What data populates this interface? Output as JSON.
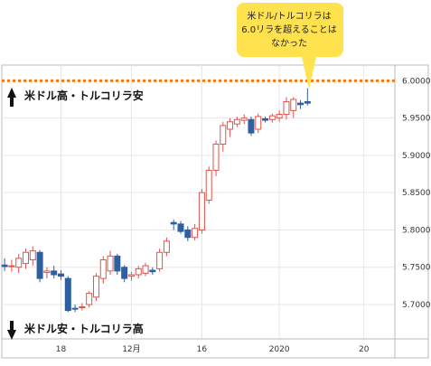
{
  "chart_data": {
    "type": "candlestick",
    "up_color": "#e0524a",
    "down_color": "#2e5f9e",
    "open": [
      5.753,
      5.751,
      5.75,
      5.755,
      5.76,
      5.77,
      5.743,
      5.745,
      5.741,
      5.735,
      5.695,
      5.696,
      5.7,
      5.71,
      5.735,
      5.745,
      5.765,
      5.75,
      5.738,
      5.74,
      5.742,
      5.746,
      5.748,
      5.77,
      5.81,
      5.808,
      5.8,
      5.79,
      5.8,
      5.84,
      5.88,
      5.915,
      5.935,
      5.942,
      5.947,
      5.948,
      5.935,
      5.949,
      5.948,
      5.95,
      5.955,
      5.96,
      5.97,
      5.972
    ],
    "high": [
      5.762,
      5.76,
      5.768,
      5.775,
      5.778,
      5.773,
      5.75,
      5.752,
      5.746,
      5.738,
      5.7,
      5.702,
      5.718,
      5.742,
      5.765,
      5.772,
      5.768,
      5.753,
      5.744,
      5.752,
      5.756,
      5.75,
      5.775,
      5.79,
      5.814,
      5.812,
      5.805,
      5.808,
      5.855,
      5.885,
      5.92,
      5.945,
      5.95,
      5.952,
      5.955,
      5.952,
      5.956,
      5.952,
      5.956,
      5.96,
      5.978,
      5.978,
      5.974,
      5.99
    ],
    "low": [
      5.745,
      5.744,
      5.742,
      5.748,
      5.752,
      5.73,
      5.735,
      5.735,
      5.733,
      5.69,
      5.69,
      5.692,
      5.696,
      5.705,
      5.728,
      5.74,
      5.74,
      5.73,
      5.732,
      5.735,
      5.738,
      5.74,
      5.744,
      5.765,
      5.8,
      5.795,
      5.785,
      5.786,
      5.795,
      5.835,
      5.872,
      5.905,
      5.925,
      5.938,
      5.942,
      5.926,
      5.93,
      5.944,
      5.944,
      5.945,
      5.948,
      5.95,
      5.962,
      5.967
    ],
    "close": [
      5.751,
      5.752,
      5.762,
      5.77,
      5.772,
      5.735,
      5.745,
      5.74,
      5.738,
      5.692,
      5.694,
      5.697,
      5.715,
      5.738,
      5.76,
      5.765,
      5.745,
      5.735,
      5.74,
      5.748,
      5.752,
      5.744,
      5.77,
      5.785,
      5.808,
      5.798,
      5.79,
      5.802,
      5.85,
      5.88,
      5.915,
      5.94,
      5.945,
      5.948,
      5.95,
      5.93,
      5.952,
      5.947,
      5.953,
      5.955,
      5.972,
      5.975,
      5.968,
      5.97
    ],
    "ylim": [
      5.654,
      6.021
    ],
    "yticks": [
      {
        "value": 5.7,
        "label": "5.7000"
      },
      {
        "value": 5.75,
        "label": "5.7500"
      },
      {
        "value": 5.8,
        "label": "5.8000"
      },
      {
        "value": 5.85,
        "label": "5.8500"
      },
      {
        "value": 5.9,
        "label": "5.9000"
      },
      {
        "value": 5.95,
        "label": "5.9500"
      },
      {
        "value": 6.0,
        "label": "6.0000"
      }
    ],
    "xlim": [
      -0.4,
      55.4
    ],
    "xticks": [
      {
        "value": 8,
        "label": "18"
      },
      {
        "value": 18,
        "label": "12月"
      },
      {
        "value": 28,
        "label": "16"
      },
      {
        "value": 39,
        "label": "2020"
      },
      {
        "value": 51,
        "label": "20"
      }
    ],
    "grid": true,
    "reference_line": {
      "value": 6.0,
      "color": "#f07c1a"
    },
    "annotations": {
      "top": "米ドル高・トルコリラ安",
      "bottom": "米ドル安・トルコリラ高",
      "callout": [
        "米ドル/トルコリラは",
        "6.0リラを超えることは",
        "なかった"
      ]
    }
  }
}
